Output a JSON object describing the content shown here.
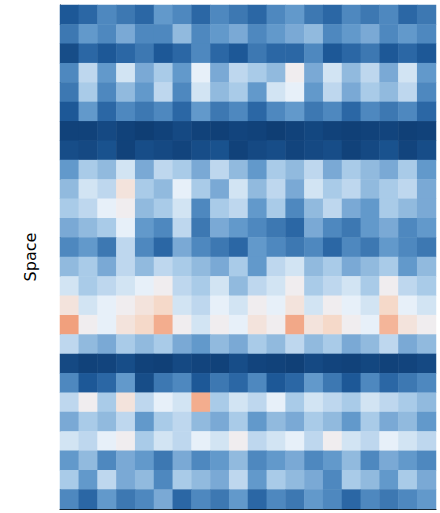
{
  "chart_data": {
    "type": "heatmap",
    "y_label": "Space",
    "tick_labels": false,
    "zlim": [
      0,
      1
    ],
    "cells": [
      [
        0.15,
        0.2,
        0.3,
        0.25,
        0.2,
        0.35,
        0.3,
        0.2,
        0.3,
        0.25,
        0.2,
        0.3,
        0.35,
        0.25,
        0.2,
        0.3,
        0.25,
        0.3,
        0.2,
        0.25
      ],
      [
        0.25,
        0.35,
        0.3,
        0.4,
        0.3,
        0.3,
        0.45,
        0.3,
        0.35,
        0.4,
        0.3,
        0.35,
        0.4,
        0.45,
        0.3,
        0.35,
        0.4,
        0.3,
        0.35,
        0.3
      ],
      [
        0.1,
        0.2,
        0.15,
        0.2,
        0.25,
        0.15,
        0.2,
        0.3,
        0.2,
        0.15,
        0.25,
        0.2,
        0.2,
        0.3,
        0.15,
        0.2,
        0.25,
        0.15,
        0.2,
        0.15
      ],
      [
        0.3,
        0.55,
        0.35,
        0.6,
        0.4,
        0.5,
        0.35,
        0.65,
        0.4,
        0.55,
        0.5,
        0.45,
        0.7,
        0.4,
        0.6,
        0.45,
        0.55,
        0.4,
        0.6,
        0.35
      ],
      [
        0.25,
        0.5,
        0.3,
        0.45,
        0.35,
        0.55,
        0.3,
        0.6,
        0.45,
        0.5,
        0.35,
        0.6,
        0.65,
        0.35,
        0.55,
        0.4,
        0.5,
        0.45,
        0.55,
        0.3
      ],
      [
        0.15,
        0.35,
        0.2,
        0.3,
        0.25,
        0.3,
        0.2,
        0.35,
        0.25,
        0.3,
        0.2,
        0.3,
        0.35,
        0.25,
        0.3,
        0.2,
        0.3,
        0.25,
        0.3,
        0.2
      ],
      [
        0.05,
        0.05,
        0.08,
        0.05,
        0.03,
        0.05,
        0.08,
        0.05,
        0.04,
        0.06,
        0.05,
        0.03,
        0.05,
        0.07,
        0.05,
        0.04,
        0.05,
        0.06,
        0.04,
        0.05
      ],
      [
        0.1,
        0.08,
        0.12,
        0.05,
        0.1,
        0.08,
        0.06,
        0.1,
        0.12,
        0.05,
        0.08,
        0.1,
        0.06,
        0.08,
        0.1,
        0.05,
        0.08,
        0.12,
        0.06,
        0.1
      ],
      [
        0.35,
        0.5,
        0.45,
        0.6,
        0.4,
        0.55,
        0.5,
        0.4,
        0.55,
        0.45,
        0.35,
        0.5,
        0.45,
        0.55,
        0.4,
        0.5,
        0.45,
        0.4,
        0.5,
        0.35
      ],
      [
        0.45,
        0.6,
        0.55,
        0.75,
        0.5,
        0.45,
        0.65,
        0.5,
        0.4,
        0.6,
        0.45,
        0.55,
        0.4,
        0.6,
        0.5,
        0.55,
        0.45,
        0.5,
        0.55,
        0.4
      ],
      [
        0.5,
        0.55,
        0.65,
        0.7,
        0.45,
        0.5,
        0.6,
        0.3,
        0.5,
        0.55,
        0.35,
        0.5,
        0.3,
        0.45,
        0.55,
        0.4,
        0.35,
        0.5,
        0.45,
        0.4
      ],
      [
        0.4,
        0.45,
        0.5,
        0.65,
        0.35,
        0.3,
        0.55,
        0.25,
        0.4,
        0.35,
        0.3,
        0.25,
        0.2,
        0.4,
        0.3,
        0.25,
        0.35,
        0.4,
        0.3,
        0.35
      ],
      [
        0.3,
        0.35,
        0.25,
        0.55,
        0.3,
        0.2,
        0.4,
        0.3,
        0.25,
        0.2,
        0.35,
        0.3,
        0.25,
        0.3,
        0.2,
        0.3,
        0.25,
        0.35,
        0.3,
        0.25
      ],
      [
        0.45,
        0.5,
        0.4,
        0.55,
        0.45,
        0.55,
        0.5,
        0.45,
        0.4,
        0.5,
        0.35,
        0.55,
        0.6,
        0.45,
        0.5,
        0.4,
        0.45,
        0.5,
        0.35,
        0.45
      ],
      [
        0.6,
        0.5,
        0.55,
        0.6,
        0.65,
        0.7,
        0.55,
        0.5,
        0.6,
        0.45,
        0.55,
        0.6,
        0.7,
        0.5,
        0.55,
        0.6,
        0.5,
        0.7,
        0.55,
        0.5
      ],
      [
        0.75,
        0.6,
        0.65,
        0.7,
        0.75,
        0.8,
        0.6,
        0.55,
        0.65,
        0.6,
        0.7,
        0.65,
        0.75,
        0.6,
        0.7,
        0.65,
        0.6,
        0.8,
        0.65,
        0.6
      ],
      [
        0.95,
        0.7,
        0.65,
        0.75,
        0.8,
        0.92,
        0.7,
        0.6,
        0.7,
        0.65,
        0.75,
        0.7,
        0.93,
        0.75,
        0.8,
        0.7,
        0.65,
        0.9,
        0.75,
        0.7
      ],
      [
        0.55,
        0.45,
        0.4,
        0.5,
        0.45,
        0.5,
        0.4,
        0.35,
        0.45,
        0.4,
        0.5,
        0.45,
        0.55,
        0.45,
        0.5,
        0.4,
        0.45,
        0.55,
        0.4,
        0.45
      ],
      [
        0.08,
        0.05,
        0.06,
        0.1,
        0.05,
        0.04,
        0.08,
        0.06,
        0.05,
        0.1,
        0.06,
        0.05,
        0.04,
        0.08,
        0.06,
        0.05,
        0.07,
        0.05,
        0.06,
        0.08
      ],
      [
        0.3,
        0.15,
        0.2,
        0.35,
        0.1,
        0.25,
        0.3,
        0.15,
        0.25,
        0.2,
        0.3,
        0.15,
        0.2,
        0.35,
        0.25,
        0.15,
        0.3,
        0.2,
        0.25,
        0.3
      ],
      [
        0.55,
        0.7,
        0.5,
        0.75,
        0.55,
        0.65,
        0.6,
        0.92,
        0.5,
        0.6,
        0.55,
        0.65,
        0.5,
        0.6,
        0.55,
        0.5,
        0.6,
        0.55,
        0.5,
        0.45
      ],
      [
        0.4,
        0.5,
        0.45,
        0.55,
        0.35,
        0.5,
        0.55,
        0.45,
        0.4,
        0.5,
        0.35,
        0.45,
        0.4,
        0.5,
        0.45,
        0.35,
        0.5,
        0.4,
        0.45,
        0.35
      ],
      [
        0.6,
        0.55,
        0.65,
        0.7,
        0.5,
        0.6,
        0.55,
        0.65,
        0.6,
        0.7,
        0.55,
        0.6,
        0.65,
        0.55,
        0.7,
        0.6,
        0.55,
        0.65,
        0.6,
        0.55
      ],
      [
        0.35,
        0.45,
        0.3,
        0.4,
        0.35,
        0.25,
        0.4,
        0.3,
        0.35,
        0.45,
        0.3,
        0.35,
        0.4,
        0.3,
        0.35,
        0.45,
        0.3,
        0.4,
        0.35,
        0.3
      ],
      [
        0.5,
        0.35,
        0.55,
        0.4,
        0.45,
        0.3,
        0.5,
        0.45,
        0.4,
        0.55,
        0.35,
        0.5,
        0.45,
        0.4,
        0.3,
        0.5,
        0.45,
        0.35,
        0.5,
        0.4
      ],
      [
        0.3,
        0.2,
        0.35,
        0.25,
        0.3,
        0.4,
        0.2,
        0.3,
        0.25,
        0.35,
        0.2,
        0.3,
        0.25,
        0.35,
        0.3,
        0.2,
        0.3,
        0.25,
        0.3,
        0.35
      ]
    ]
  }
}
